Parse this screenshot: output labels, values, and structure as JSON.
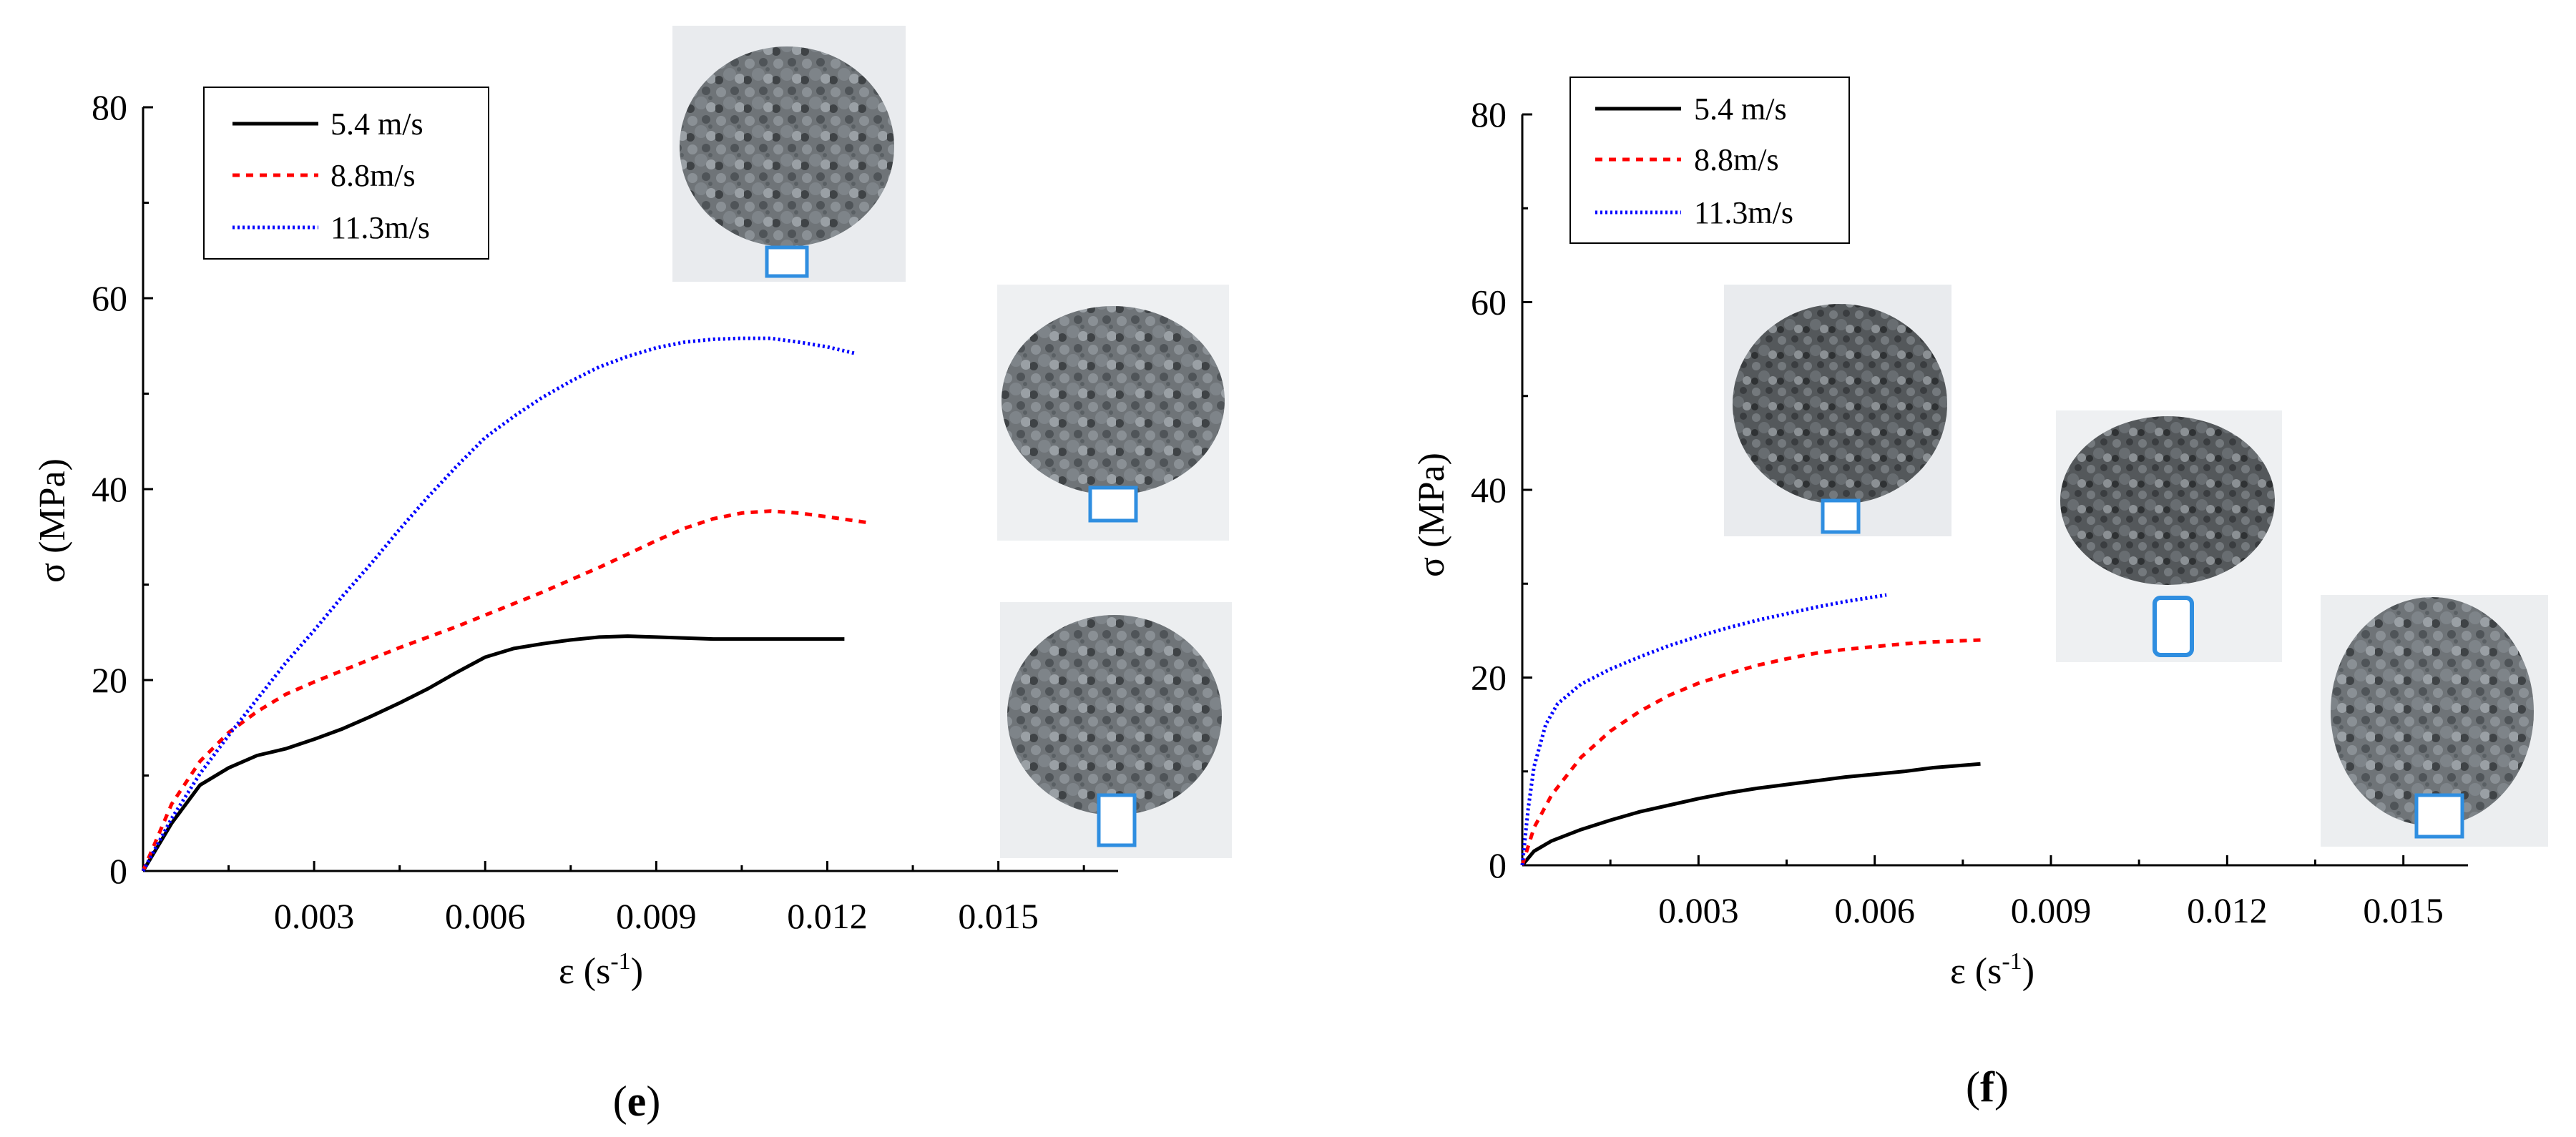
{
  "chart_data": [
    {
      "type": "line",
      "panel_label": "e",
      "xlabel": "ε (s-1)",
      "xlabel_base": "ε (s",
      "xlabel_sup": "-1",
      "xlabel_end": ")",
      "ylabel": "σ (MPa)",
      "xlim": [
        0,
        0.0171
      ],
      "ylim": [
        0,
        80
      ],
      "xticks": [
        0.003,
        0.006,
        0.009,
        0.012,
        0.015
      ],
      "xtick_labels": [
        "0.003",
        "0.006",
        "0.009",
        "0.012",
        "0.015"
      ],
      "yticks": [
        0,
        20,
        40,
        60,
        80
      ],
      "ytick_labels": [
        "0",
        "20",
        "40",
        "60",
        "80"
      ],
      "legend_position": "top-left",
      "series": [
        {
          "name": "5.4 m/s",
          "color": "#000000",
          "style": "solid",
          "x": [
            0,
            0.0005,
            0.001,
            0.0015,
            0.002,
            0.0025,
            0.003,
            0.0035,
            0.004,
            0.0045,
            0.005,
            0.0055,
            0.006,
            0.0065,
            0.007,
            0.0075,
            0.008,
            0.0085,
            0.009,
            0.0095,
            0.01,
            0.0105,
            0.011,
            0.0115,
            0.0123
          ],
          "y": [
            0,
            5,
            9,
            10.8,
            12.1,
            12.8,
            13.8,
            14.9,
            16.2,
            17.6,
            19.1,
            20.8,
            22.4,
            23.3,
            23.8,
            24.2,
            24.5,
            24.6,
            24.5,
            24.4,
            24.3,
            24.3,
            24.3,
            24.3,
            24.3
          ]
        },
        {
          "name": "8.8m/s",
          "color": "#ff0000",
          "style": "dashed",
          "x": [
            0,
            0.0005,
            0.001,
            0.0015,
            0.002,
            0.0025,
            0.003,
            0.0035,
            0.004,
            0.0045,
            0.005,
            0.0055,
            0.006,
            0.0065,
            0.007,
            0.0075,
            0.008,
            0.0085,
            0.009,
            0.0095,
            0.01,
            0.0105,
            0.011,
            0.0115,
            0.012,
            0.0127
          ],
          "y": [
            0,
            7,
            11.5,
            14.5,
            16.7,
            18.5,
            19.8,
            21,
            22.2,
            23.4,
            24.5,
            25.6,
            26.8,
            28,
            29.2,
            30.5,
            31.8,
            33.2,
            34.6,
            35.9,
            36.9,
            37.5,
            37.7,
            37.5,
            37.1,
            36.5
          ]
        },
        {
          "name": "11.3m/s",
          "color": "#0000ff",
          "style": "dotted",
          "x": [
            0,
            0.0005,
            0.001,
            0.0015,
            0.002,
            0.0025,
            0.003,
            0.0035,
            0.004,
            0.0045,
            0.005,
            0.0055,
            0.006,
            0.0065,
            0.007,
            0.0075,
            0.008,
            0.0085,
            0.009,
            0.0095,
            0.01,
            0.0105,
            0.011,
            0.0115,
            0.012,
            0.0125
          ],
          "y": [
            0,
            5.5,
            10.2,
            14.2,
            18,
            21.8,
            25.2,
            28.8,
            32.2,
            35.8,
            39.2,
            42.4,
            45.4,
            47.6,
            49.6,
            51.3,
            52.8,
            53.9,
            54.8,
            55.4,
            55.7,
            55.8,
            55.8,
            55.4,
            54.9,
            54.2
          ]
        }
      ],
      "legend_items": [
        "5.4 m/s",
        "8.8m/s",
        "11.3m/s"
      ]
    },
    {
      "type": "line",
      "panel_label": "f",
      "xlabel": "ε (s-1)",
      "xlabel_base": "ε (s",
      "xlabel_sup": "-1",
      "xlabel_end": ")",
      "ylabel": "σ (MPa)",
      "xlim": [
        0,
        0.0161
      ],
      "ylim": [
        0,
        80
      ],
      "xticks": [
        0.003,
        0.006,
        0.009,
        0.012,
        0.015
      ],
      "xtick_labels": [
        "0.003",
        "0.006",
        "0.009",
        "0.012",
        "0.015"
      ],
      "yticks": [
        0,
        20,
        40,
        60,
        80
      ],
      "ytick_labels": [
        "0",
        "20",
        "40",
        "60",
        "80"
      ],
      "legend_position": "top-left",
      "series": [
        {
          "name": "5.4 m/s",
          "color": "#000000",
          "style": "solid",
          "x": [
            0,
            0.0002,
            0.0005,
            0.001,
            0.0015,
            0.002,
            0.0025,
            0.003,
            0.0035,
            0.004,
            0.0045,
            0.005,
            0.0055,
            0.006,
            0.0065,
            0.007,
            0.0078
          ],
          "y": [
            0,
            1.5,
            2.6,
            3.8,
            4.8,
            5.7,
            6.4,
            7.1,
            7.7,
            8.2,
            8.6,
            9.0,
            9.4,
            9.7,
            10.0,
            10.4,
            10.8
          ]
        },
        {
          "name": "8.8m/s",
          "color": "#ff0000",
          "style": "dashed",
          "x": [
            0,
            0.0002,
            0.0005,
            0.001,
            0.0015,
            0.002,
            0.0025,
            0.003,
            0.0035,
            0.004,
            0.0045,
            0.005,
            0.0055,
            0.006,
            0.0065,
            0.007,
            0.0078
          ],
          "y": [
            0,
            4,
            7.5,
            11.5,
            14.3,
            16.4,
            18.1,
            19.4,
            20.4,
            21.3,
            22,
            22.6,
            23,
            23.3,
            23.6,
            23.8,
            24
          ]
        },
        {
          "name": "11.3m/s",
          "color": "#0000ff",
          "style": "dotted",
          "x": [
            0,
            0.0001,
            0.0002,
            0.0004,
            0.0006,
            0.001,
            0.0015,
            0.002,
            0.0025,
            0.003,
            0.0035,
            0.004,
            0.0045,
            0.005,
            0.0055,
            0.0062
          ],
          "y": [
            0,
            6,
            10.5,
            15,
            17.2,
            19.3,
            20.9,
            22.2,
            23.4,
            24.4,
            25.3,
            26.1,
            26.8,
            27.5,
            28.1,
            28.8
          ]
        }
      ],
      "legend_items": [
        "5.4 m/s",
        "8.8m/s",
        "11.3m/s"
      ]
    }
  ]
}
